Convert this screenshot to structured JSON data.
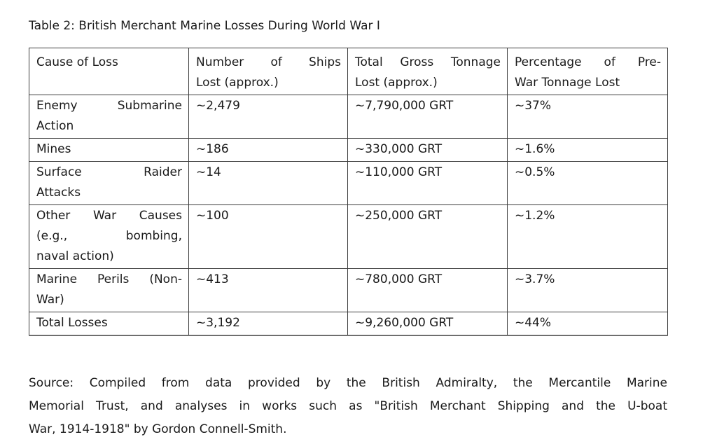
{
  "page": {
    "title": "Table 2: British Merchant Marine Losses During World War I",
    "source_lines": [
      "Source: Compiled from data provided by the British Admiralty, the Mercantile Marine",
      "Memorial Trust, and analyses in works such as \"British Merchant Shipping and the U-boat",
      "War, 1914-1918\" by Gordon Connell-Smith."
    ]
  },
  "table": {
    "headers": [
      [
        "Cause of Loss"
      ],
      [
        "Number of Ships",
        "Lost (approx.)"
      ],
      [
        "Total Gross Tonnage",
        "Lost (approx.)"
      ],
      [
        "Percentage of Pre-",
        "War Tonnage Lost"
      ]
    ],
    "rows": [
      {
        "cells": [
          [
            "Enemy Submarine",
            "Action"
          ],
          [
            "~2,479"
          ],
          [
            "~7,790,000 GRT"
          ],
          [
            "~37%"
          ]
        ]
      },
      {
        "cells": [
          [
            "Mines"
          ],
          [
            "~186"
          ],
          [
            "~330,000 GRT"
          ],
          [
            "~1.6%"
          ]
        ]
      },
      {
        "cells": [
          [
            "Surface Raider",
            "Attacks"
          ],
          [
            "~14"
          ],
          [
            "~110,000 GRT"
          ],
          [
            "~0.5%"
          ]
        ]
      },
      {
        "cells": [
          [
            "Other War Causes",
            "(e.g., bombing,",
            "naval action)"
          ],
          [
            "~100"
          ],
          [
            "~250,000 GRT"
          ],
          [
            "~1.2%"
          ]
        ]
      },
      {
        "cells": [
          [
            "Marine Perils (Non-",
            "War)"
          ],
          [
            "~413"
          ],
          [
            "~780,000 GRT"
          ],
          [
            "~3.7%"
          ]
        ]
      },
      {
        "cells": [
          [
            "Total Losses"
          ],
          [
            "~3,192"
          ],
          [
            "~9,260,000 GRT"
          ],
          [
            "~44%"
          ]
        ]
      }
    ]
  },
  "colors": {
    "text": "#1a1a1a",
    "border": "#3d3d3d",
    "background": "#ffffff"
  }
}
